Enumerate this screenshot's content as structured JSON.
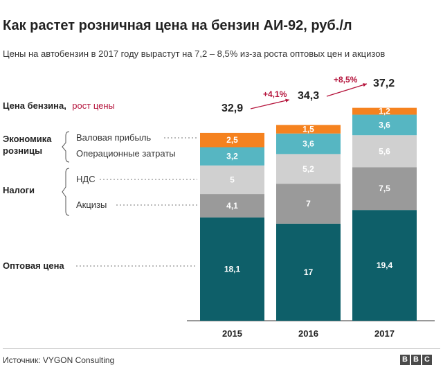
{
  "header": {
    "title": "Как растет розничная цена на бензин АИ-92, руб./л",
    "subtitle": "Цены на автобензин в 2017 году вырастут на 7,2 – 8,5% из-за роста оптовых цен и акцизов"
  },
  "legend": {
    "price_label": "Цена бензина,",
    "growth_label": "рост цены",
    "group_retail_line1": "Экономика",
    "group_retail_line2": "розницы",
    "group_taxes": "Налоги",
    "gross_profit": "Валовая прибыль",
    "operating_costs": "Операционные затраты",
    "vat": "НДС",
    "excise": "Акцизы",
    "wholesale": "Оптовая цена"
  },
  "footer": {
    "source": "Источник: VYGON Consulting",
    "logo_letters": [
      "B",
      "B",
      "C"
    ]
  },
  "colors": {
    "wholesale": "#0e5f69",
    "excise": "#9a9a9a",
    "vat": "#d0d0d0",
    "operating_costs": "#56b6c2",
    "gross_profit": "#f5821f",
    "growth": "#b5143c"
  },
  "chart_data": {
    "type": "bar",
    "stacked": true,
    "categories": [
      "2015",
      "2016",
      "2017"
    ],
    "series": [
      {
        "name": "Оптовая цена",
        "values": [
          18.1,
          17,
          19.4
        ],
        "labels": [
          "18,1",
          "17",
          "19,4"
        ]
      },
      {
        "name": "Акцизы",
        "values": [
          4.1,
          7,
          7.5
        ],
        "labels": [
          "4,1",
          "7",
          "7,5"
        ]
      },
      {
        "name": "НДС",
        "values": [
          5,
          5.2,
          5.6
        ],
        "labels": [
          "5",
          "5,2",
          "5,6"
        ]
      },
      {
        "name": "Операционные затраты",
        "values": [
          3.2,
          3.6,
          3.6
        ],
        "labels": [
          "3,2",
          "3,6",
          "3,6"
        ]
      },
      {
        "name": "Валовая прибыль",
        "values": [
          2.5,
          1.5,
          1.2
        ],
        "labels": [
          "2,5",
          "1,5",
          "1,2"
        ]
      }
    ],
    "totals": [
      32.9,
      34.3,
      37.2
    ],
    "total_labels": [
      "32,9",
      "34,3",
      "37,2"
    ],
    "growth_labels": [
      "+4,1%",
      "+8,5%"
    ],
    "ylim": [
      0,
      38
    ],
    "grid": false,
    "legend_position": "left"
  }
}
